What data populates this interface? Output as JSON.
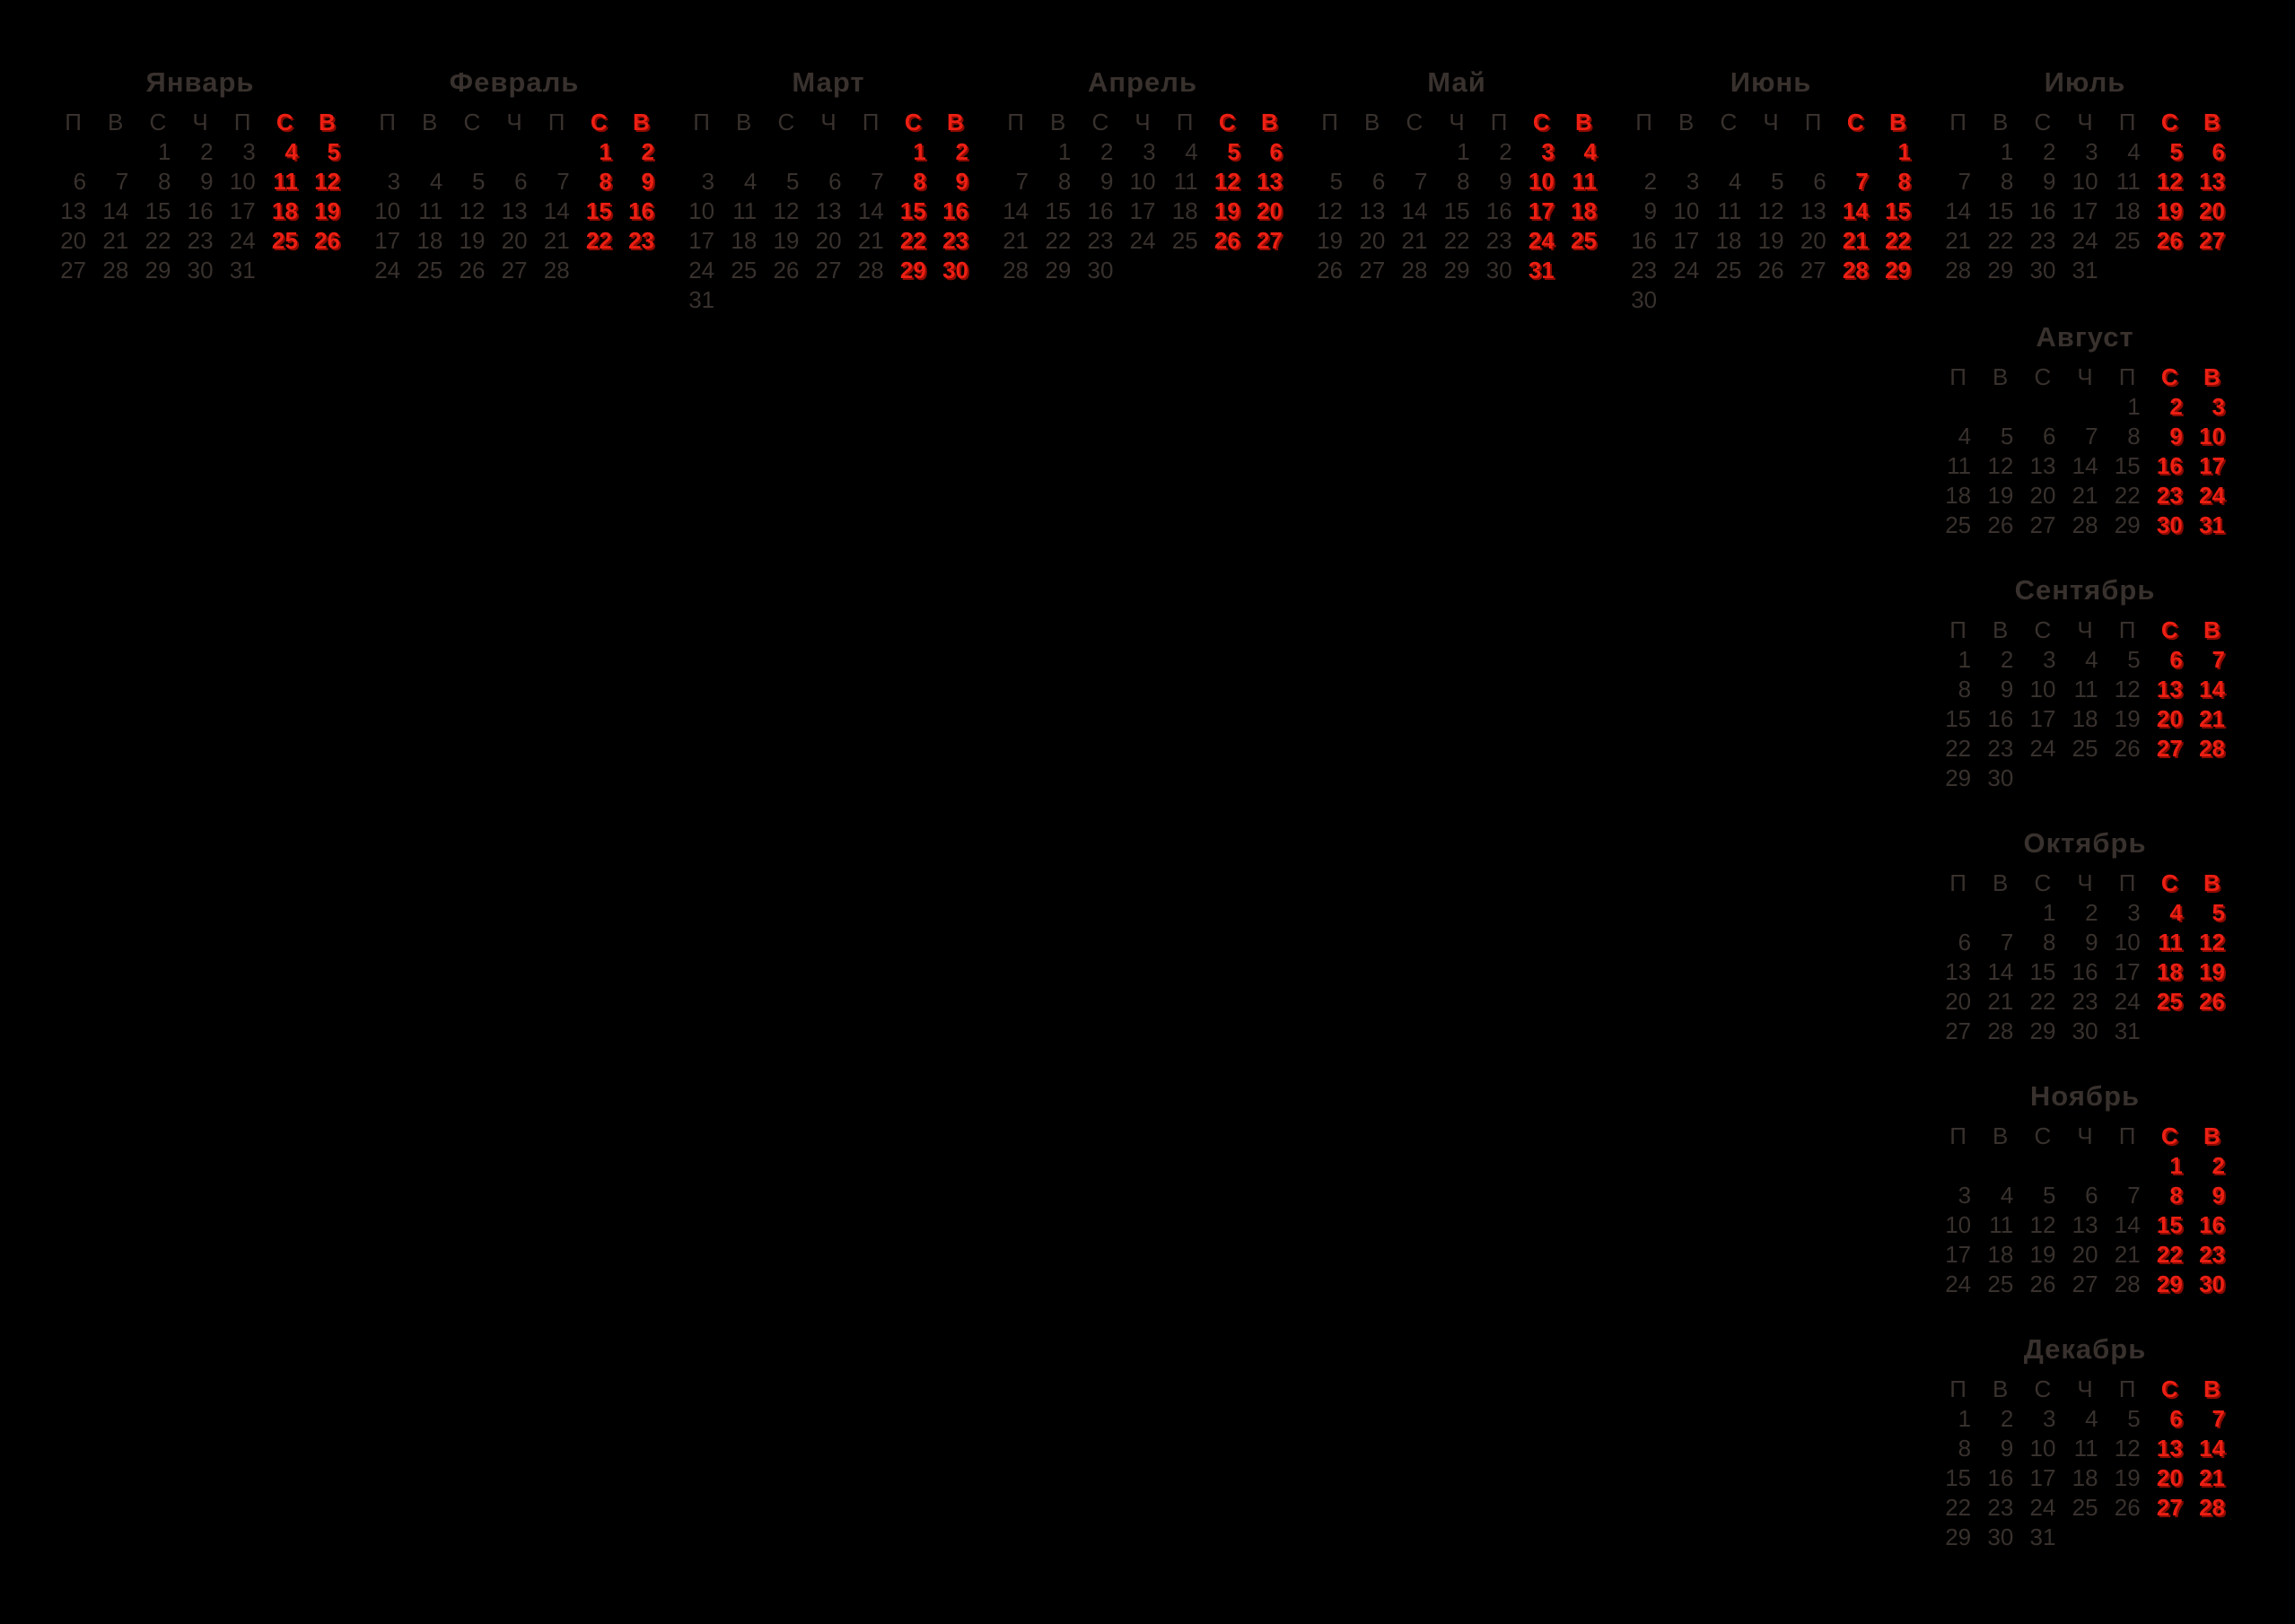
{
  "colors": {
    "background": "#000000",
    "day_text": "#38312d",
    "weekend_text": "#ed1f13",
    "weekend_shadow": "#8a0a01"
  },
  "weekday_headers": {
    "labels": [
      "П",
      "В",
      "С",
      "Ч",
      "П",
      "С",
      "В"
    ],
    "weekend_indexes": [
      5,
      6
    ]
  },
  "calendar": {
    "months": [
      {
        "id": "january",
        "title": "Январь",
        "column": "top",
        "weeks": [
          [
            "",
            "",
            "1",
            "2",
            "3",
            "4",
            "5"
          ],
          [
            "6",
            "7",
            "8",
            "9",
            "10",
            "11",
            "12"
          ],
          [
            "13",
            "14",
            "15",
            "16",
            "17",
            "18",
            "19"
          ],
          [
            "20",
            "21",
            "22",
            "23",
            "24",
            "25",
            "26"
          ],
          [
            "27",
            "28",
            "29",
            "30",
            "31",
            "",
            ""
          ]
        ]
      },
      {
        "id": "february",
        "title": "Февраль",
        "column": "top",
        "weeks": [
          [
            "",
            "",
            "",
            "",
            "",
            "1",
            "2"
          ],
          [
            "3",
            "4",
            "5",
            "6",
            "7",
            "8",
            "9"
          ],
          [
            "10",
            "11",
            "12",
            "13",
            "14",
            "15",
            "16"
          ],
          [
            "17",
            "18",
            "19",
            "20",
            "21",
            "22",
            "23"
          ],
          [
            "24",
            "25",
            "26",
            "27",
            "28",
            "",
            ""
          ]
        ]
      },
      {
        "id": "march",
        "title": "Март",
        "column": "top",
        "weeks": [
          [
            "",
            "",
            "",
            "",
            "",
            "1",
            "2"
          ],
          [
            "3",
            "4",
            "5",
            "6",
            "7",
            "8",
            "9"
          ],
          [
            "10",
            "11",
            "12",
            "13",
            "14",
            "15",
            "16"
          ],
          [
            "17",
            "18",
            "19",
            "20",
            "21",
            "22",
            "23"
          ],
          [
            "24",
            "25",
            "26",
            "27",
            "28",
            "29",
            "30"
          ],
          [
            "31",
            "",
            "",
            "",
            "",
            "",
            ""
          ]
        ]
      },
      {
        "id": "april",
        "title": "Апрель",
        "column": "top",
        "weeks": [
          [
            "",
            "1",
            "2",
            "3",
            "4",
            "5",
            "6"
          ],
          [
            "7",
            "8",
            "9",
            "10",
            "11",
            "12",
            "13"
          ],
          [
            "14",
            "15",
            "16",
            "17",
            "18",
            "19",
            "20"
          ],
          [
            "21",
            "22",
            "23",
            "24",
            "25",
            "26",
            "27"
          ],
          [
            "28",
            "29",
            "30",
            "",
            "",
            "",
            ""
          ]
        ]
      },
      {
        "id": "may",
        "title": "Май",
        "column": "top",
        "weeks": [
          [
            "",
            "",
            "",
            "1",
            "2",
            "3",
            "4"
          ],
          [
            "5",
            "6",
            "7",
            "8",
            "9",
            "10",
            "11"
          ],
          [
            "12",
            "13",
            "14",
            "15",
            "16",
            "17",
            "18"
          ],
          [
            "19",
            "20",
            "21",
            "22",
            "23",
            "24",
            "25"
          ],
          [
            "26",
            "27",
            "28",
            "29",
            "30",
            "31",
            ""
          ]
        ]
      },
      {
        "id": "june",
        "title": "Июнь",
        "column": "top",
        "weeks": [
          [
            "",
            "",
            "",
            "",
            "",
            "",
            "1"
          ],
          [
            "2",
            "3",
            "4",
            "5",
            "6",
            "7",
            "8"
          ],
          [
            "9",
            "10",
            "11",
            "12",
            "13",
            "14",
            "15"
          ],
          [
            "16",
            "17",
            "18",
            "19",
            "20",
            "21",
            "22"
          ],
          [
            "23",
            "24",
            "25",
            "26",
            "27",
            "28",
            "29"
          ],
          [
            "30",
            "",
            "",
            "",
            "",
            "",
            ""
          ]
        ]
      },
      {
        "id": "july",
        "title": "Июль",
        "column": "top",
        "weeks": [
          [
            "",
            "1",
            "2",
            "3",
            "4",
            "5",
            "6"
          ],
          [
            "7",
            "8",
            "9",
            "10",
            "11",
            "12",
            "13"
          ],
          [
            "14",
            "15",
            "16",
            "17",
            "18",
            "19",
            "20"
          ],
          [
            "21",
            "22",
            "23",
            "24",
            "25",
            "26",
            "27"
          ],
          [
            "28",
            "29",
            "30",
            "31",
            "",
            "",
            ""
          ]
        ]
      },
      {
        "id": "august",
        "title": "Август",
        "column": "right",
        "weeks": [
          [
            "",
            "",
            "",
            "",
            "1",
            "2",
            "3"
          ],
          [
            "4",
            "5",
            "6",
            "7",
            "8",
            "9",
            "10"
          ],
          [
            "11",
            "12",
            "13",
            "14",
            "15",
            "16",
            "17"
          ],
          [
            "18",
            "19",
            "20",
            "21",
            "22",
            "23",
            "24"
          ],
          [
            "25",
            "26",
            "27",
            "28",
            "29",
            "30",
            "31"
          ]
        ]
      },
      {
        "id": "september",
        "title": "Сентябрь",
        "column": "right",
        "weeks": [
          [
            "1",
            "2",
            "3",
            "4",
            "5",
            "6",
            "7"
          ],
          [
            "8",
            "9",
            "10",
            "11",
            "12",
            "13",
            "14"
          ],
          [
            "15",
            "16",
            "17",
            "18",
            "19",
            "20",
            "21"
          ],
          [
            "22",
            "23",
            "24",
            "25",
            "26",
            "27",
            "28"
          ],
          [
            "29",
            "30",
            "",
            "",
            "",
            "",
            ""
          ]
        ]
      },
      {
        "id": "october",
        "title": "Октябрь",
        "column": "right",
        "weeks": [
          [
            "",
            "",
            "1",
            "2",
            "3",
            "4",
            "5"
          ],
          [
            "6",
            "7",
            "8",
            "9",
            "10",
            "11",
            "12"
          ],
          [
            "13",
            "14",
            "15",
            "16",
            "17",
            "18",
            "19"
          ],
          [
            "20",
            "21",
            "22",
            "23",
            "24",
            "25",
            "26"
          ],
          [
            "27",
            "28",
            "29",
            "30",
            "31",
            "",
            ""
          ]
        ]
      },
      {
        "id": "november",
        "title": "Ноябрь",
        "column": "right",
        "weeks": [
          [
            "",
            "",
            "",
            "",
            "",
            "1",
            "2"
          ],
          [
            "3",
            "4",
            "5",
            "6",
            "7",
            "8",
            "9"
          ],
          [
            "10",
            "11",
            "12",
            "13",
            "14",
            "15",
            "16"
          ],
          [
            "17",
            "18",
            "19",
            "20",
            "21",
            "22",
            "23"
          ],
          [
            "24",
            "25",
            "26",
            "27",
            "28",
            "29",
            "30"
          ]
        ]
      },
      {
        "id": "december",
        "title": "Декабрь",
        "column": "right",
        "weeks": [
          [
            "1",
            "2",
            "3",
            "4",
            "5",
            "6",
            "7"
          ],
          [
            "8",
            "9",
            "10",
            "11",
            "12",
            "13",
            "14"
          ],
          [
            "15",
            "16",
            "17",
            "18",
            "19",
            "20",
            "21"
          ],
          [
            "22",
            "23",
            "24",
            "25",
            "26",
            "27",
            "28"
          ],
          [
            "29",
            "30",
            "31",
            "",
            "",
            "",
            ""
          ]
        ]
      }
    ]
  }
}
